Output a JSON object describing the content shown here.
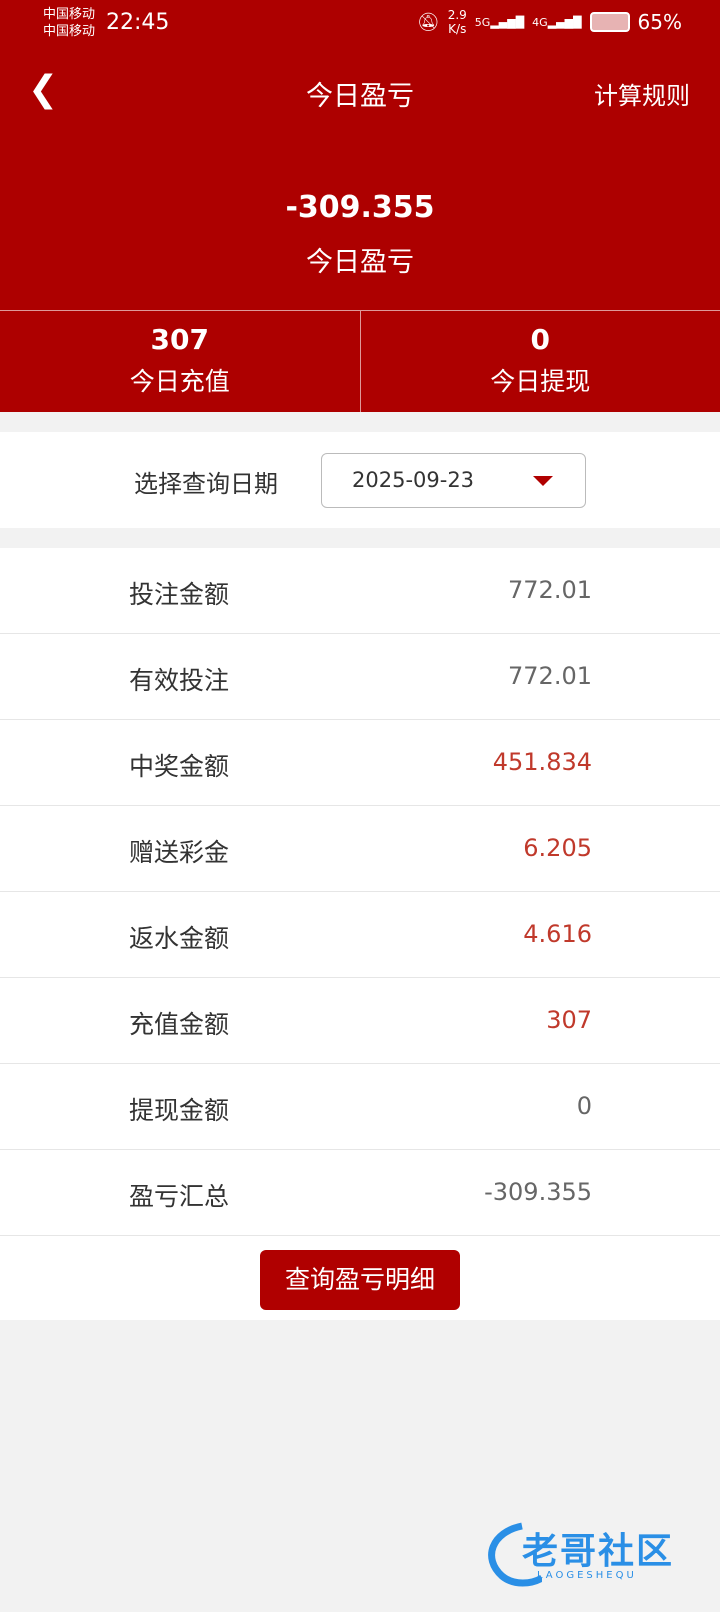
{
  "status_bar": {
    "carrier1": "中国移动",
    "carrier2": "中国移动",
    "time": "22:45",
    "speed_value": "2.9",
    "speed_unit": "K/s",
    "net1": "5G",
    "net2": "4G",
    "battery": "65%"
  },
  "nav": {
    "title": "今日盈亏",
    "rules": "计算规则"
  },
  "summary": {
    "value": "-309.355",
    "label": "今日盈亏"
  },
  "stats": [
    {
      "value": "307",
      "label": "今日充值"
    },
    {
      "value": "0",
      "label": "今日提现"
    }
  ],
  "date": {
    "label": "选择查询日期",
    "value": "2025-09-23"
  },
  "rows": [
    {
      "label": "投注金额",
      "value": "772.01"
    },
    {
      "label": "有效投注",
      "value": "772.01"
    },
    {
      "label": "中奖金额",
      "value": "451.834"
    },
    {
      "label": "赠送彩金",
      "value": "6.205"
    },
    {
      "label": "返水金额",
      "value": "4.616"
    },
    {
      "label": "充值金额",
      "value": "307"
    },
    {
      "label": "提现金额",
      "value": "0"
    },
    {
      "label": "盈亏汇总",
      "value": "-309.355"
    }
  ],
  "button": "查询盈亏明细",
  "watermark": {
    "text": "老哥社区",
    "sub": "LAOGESHEQU"
  },
  "colors": {
    "primary": "#ad0000",
    "highlight": "#c0392b"
  }
}
